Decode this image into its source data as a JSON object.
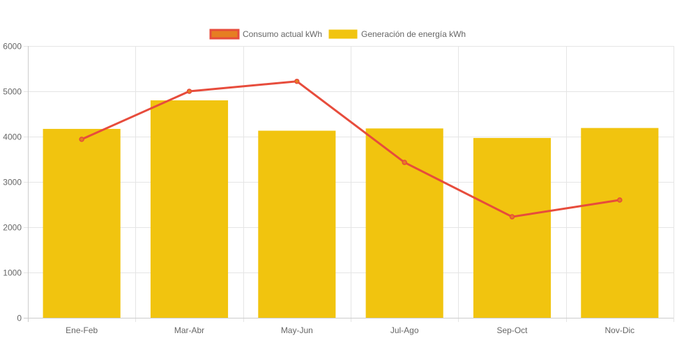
{
  "colors": {
    "bar": "#f1c40f",
    "line": "#e74c3c",
    "line_fill": "#e67e22",
    "grid": "#e5e5e5",
    "axis": "#cccccc",
    "text": "#666666"
  },
  "chart_data": {
    "type": "bar",
    "categories": [
      "Ene-Feb",
      "Mar-Abr",
      "May-Jun",
      "Jul-Ago",
      "Sep-Oct",
      "Nov-Dic"
    ],
    "series": [
      {
        "name": "Consumo actual kWh",
        "type": "line",
        "color": "#e74c3c",
        "values": [
          3940,
          5000,
          5220,
          3430,
          2230,
          2600
        ]
      },
      {
        "name": "Generación de energía kWh",
        "type": "bar",
        "color": "#f1c40f",
        "values": [
          4170,
          4800,
          4130,
          4180,
          3970,
          4190
        ]
      }
    ],
    "y_ticks": [
      "0",
      "1000",
      "2000",
      "3000",
      "4000",
      "5000",
      "6000"
    ],
    "ylim": [
      0,
      6000
    ],
    "grid": true,
    "legend_position": "top-center"
  }
}
